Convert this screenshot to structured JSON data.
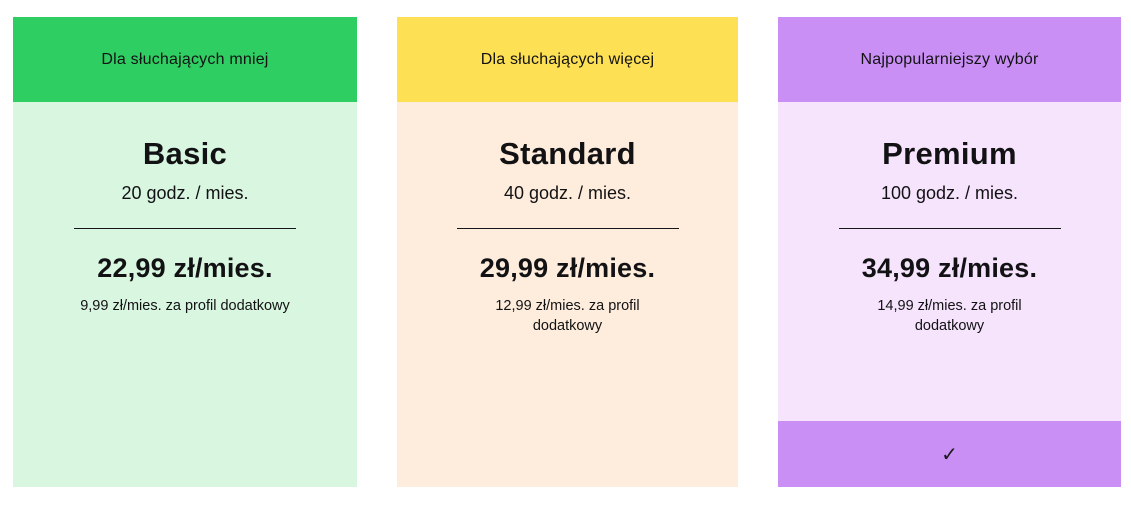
{
  "page": {
    "background": "#ffffff",
    "text_color": "#121214"
  },
  "cards": [
    {
      "id": "basic",
      "banner": "Dla słuchających mniej",
      "plan_name": "Basic",
      "hours": "20 godz. / mies.",
      "price": "22,99 zł/mies.",
      "extra_profile": "9,99 zł/mies. za profil dodatkowy",
      "selected": false,
      "colors": {
        "banner": "#2fce62",
        "body": "#d8f6e0"
      }
    },
    {
      "id": "standard",
      "banner": "Dla słuchających więcej",
      "plan_name": "Standard",
      "hours": "40 godz. / mies.",
      "price": "29,99 zł/mies.",
      "extra_profile": "12,99 zł/mies. za profil\ndodatkowy",
      "selected": false,
      "colors": {
        "banner": "#fde053",
        "body": "#feeddc"
      }
    },
    {
      "id": "premium",
      "banner": "Najpopularniejszy wybór",
      "plan_name": "Premium",
      "hours": "100 godz. / mies.",
      "price": "34,99 zł/mies.",
      "extra_profile": "14,99 zł/mies. za profil\ndodatkowy",
      "selected": true,
      "check_icon": "✓",
      "colors": {
        "banner": "#ca8ff4",
        "body": "#f6e3fc",
        "footer": "#ca8ff4"
      }
    }
  ]
}
